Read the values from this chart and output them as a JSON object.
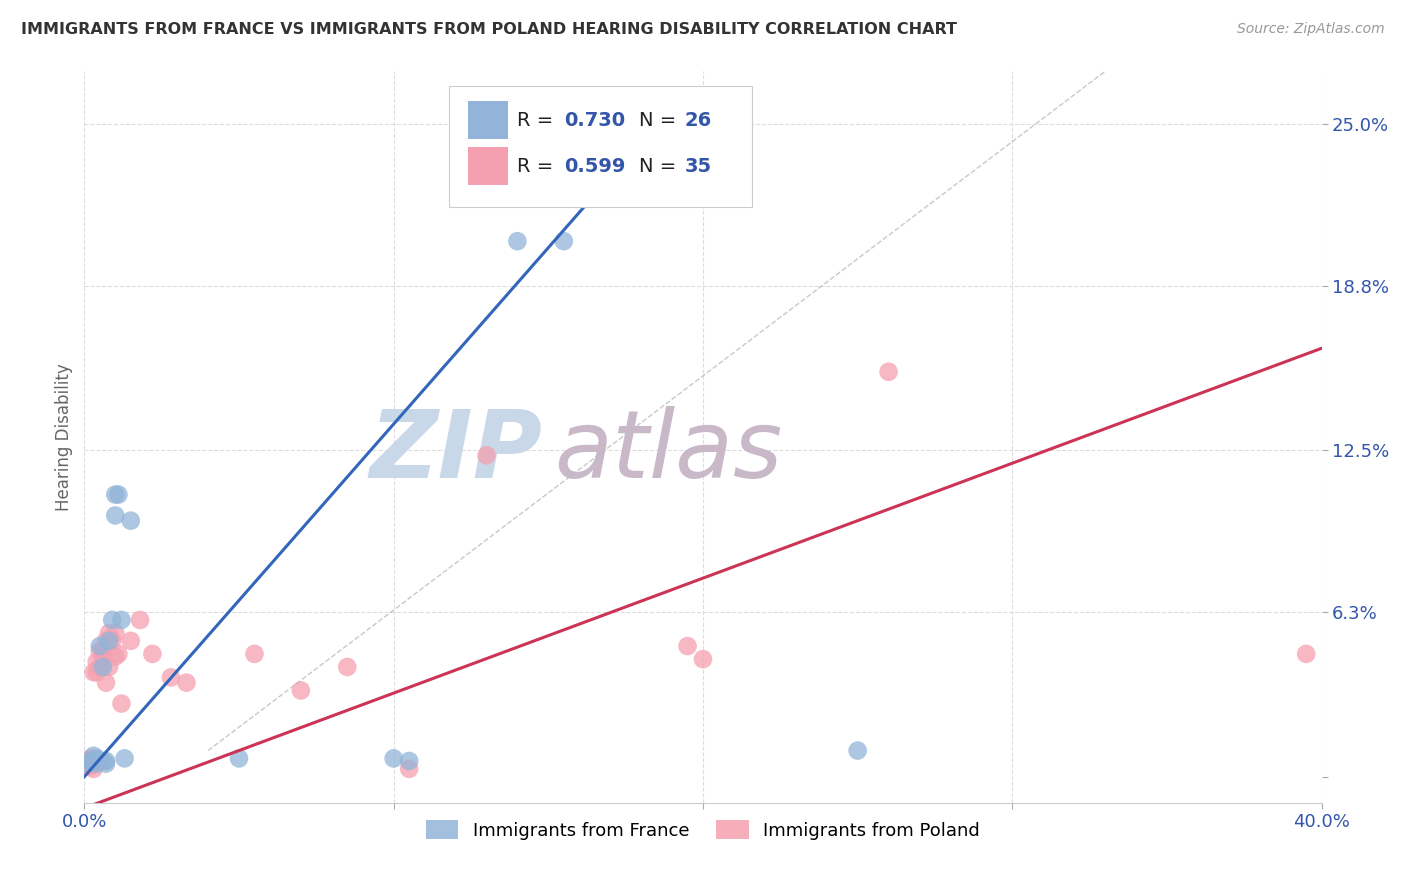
{
  "title": "IMMIGRANTS FROM FRANCE VS IMMIGRANTS FROM POLAND HEARING DISABILITY CORRELATION CHART",
  "source": "Source: ZipAtlas.com",
  "ylabel": "Hearing Disability",
  "ytick_labels": [
    "",
    "6.3%",
    "12.5%",
    "18.8%",
    "25.0%"
  ],
  "ytick_values": [
    0.0,
    0.063,
    0.125,
    0.188,
    0.25
  ],
  "xlim": [
    0.0,
    0.4
  ],
  "ylim": [
    -0.01,
    0.27
  ],
  "france_R": 0.73,
  "france_N": 26,
  "poland_R": 0.599,
  "poland_N": 35,
  "france_color": "#92B4D8",
  "poland_color": "#F5A0B0",
  "france_scatter": [
    [
      0.001,
      0.005
    ],
    [
      0.002,
      0.006
    ],
    [
      0.003,
      0.008
    ],
    [
      0.003,
      0.006
    ],
    [
      0.004,
      0.007
    ],
    [
      0.004,
      0.005
    ],
    [
      0.005,
      0.006
    ],
    [
      0.005,
      0.05
    ],
    [
      0.006,
      0.042
    ],
    [
      0.006,
      0.006
    ],
    [
      0.007,
      0.006
    ],
    [
      0.007,
      0.005
    ],
    [
      0.008,
      0.052
    ],
    [
      0.009,
      0.06
    ],
    [
      0.01,
      0.1
    ],
    [
      0.01,
      0.108
    ],
    [
      0.011,
      0.108
    ],
    [
      0.012,
      0.06
    ],
    [
      0.013,
      0.007
    ],
    [
      0.015,
      0.098
    ],
    [
      0.05,
      0.007
    ],
    [
      0.1,
      0.007
    ],
    [
      0.105,
      0.006
    ],
    [
      0.14,
      0.205
    ],
    [
      0.155,
      0.205
    ],
    [
      0.25,
      0.01
    ]
  ],
  "poland_scatter": [
    [
      0.001,
      0.004
    ],
    [
      0.001,
      0.006
    ],
    [
      0.002,
      0.004
    ],
    [
      0.002,
      0.007
    ],
    [
      0.003,
      0.003
    ],
    [
      0.003,
      0.04
    ],
    [
      0.004,
      0.044
    ],
    [
      0.004,
      0.04
    ],
    [
      0.005,
      0.048
    ],
    [
      0.005,
      0.042
    ],
    [
      0.006,
      0.046
    ],
    [
      0.006,
      0.048
    ],
    [
      0.007,
      0.052
    ],
    [
      0.007,
      0.036
    ],
    [
      0.008,
      0.055
    ],
    [
      0.008,
      0.042
    ],
    [
      0.009,
      0.052
    ],
    [
      0.01,
      0.046
    ],
    [
      0.01,
      0.055
    ],
    [
      0.011,
      0.047
    ],
    [
      0.012,
      0.028
    ],
    [
      0.015,
      0.052
    ],
    [
      0.018,
      0.06
    ],
    [
      0.022,
      0.047
    ],
    [
      0.028,
      0.038
    ],
    [
      0.033,
      0.036
    ],
    [
      0.055,
      0.047
    ],
    [
      0.07,
      0.033
    ],
    [
      0.085,
      0.042
    ],
    [
      0.105,
      0.003
    ],
    [
      0.13,
      0.123
    ],
    [
      0.195,
      0.05
    ],
    [
      0.2,
      0.045
    ],
    [
      0.26,
      0.155
    ],
    [
      0.395,
      0.047
    ]
  ],
  "france_line_color": "#3366BB",
  "poland_line_color": "#CC3355",
  "diagonal_color": "#BBBBBB",
  "background_color": "#FFFFFF",
  "grid_color": "#DDDDDD",
  "title_color": "#333333",
  "axis_label_color": "#3355AA",
  "ylabel_color": "#666666",
  "watermark_zip_color": "#C8D8E8",
  "watermark_atlas_color": "#C8B8C8"
}
